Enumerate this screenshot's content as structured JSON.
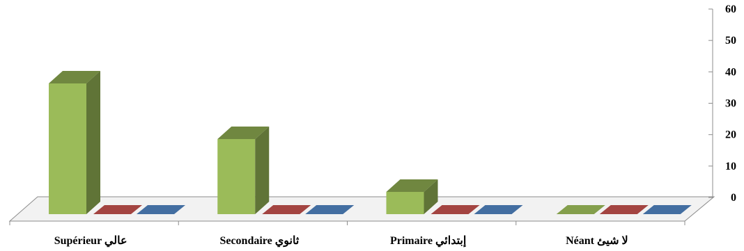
{
  "chart_data": {
    "type": "bar",
    "title": "",
    "xlabel": "",
    "ylabel": "",
    "categories": [
      "Supérieur عالي",
      "Secondaire ثانوي",
      "Primaire إبتدائي",
      "Néant لا شيئ"
    ],
    "series": [
      {
        "values": [
          47,
          27,
          8,
          0
        ],
        "color": "#9bbb59"
      },
      {
        "values": [
          0,
          0,
          0,
          0
        ],
        "color": "#c0504d"
      },
      {
        "values": [
          0,
          0,
          0,
          0
        ],
        "color": "#4f81bd"
      }
    ],
    "ylim": [
      0,
      60
    ],
    "y_ticks": [
      "0",
      "10",
      "20",
      "30",
      "40",
      "50",
      "60"
    ],
    "y_axis_side": "right",
    "grid": false,
    "legend": "none",
    "style": "3d-column"
  }
}
